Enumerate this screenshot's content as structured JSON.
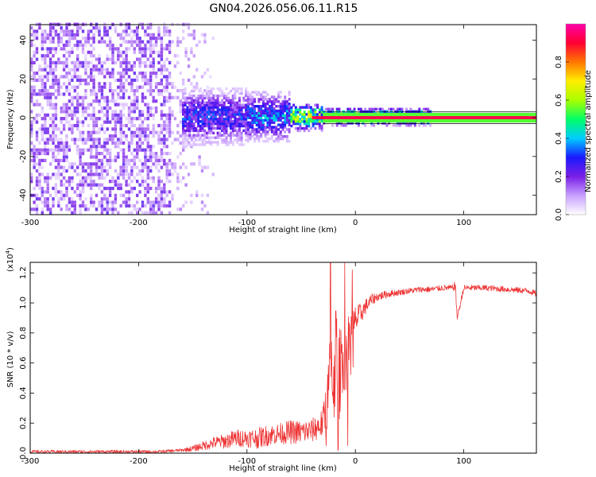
{
  "title": "GN04.2026.056.06.11.R15",
  "chart_data": [
    {
      "type": "heatmap",
      "xlabel": "Height of straight line (km)",
      "ylabel": "Frequency (Hz)",
      "xlim": [
        -300,
        167
      ],
      "ylim": [
        -50,
        48
      ],
      "xticks": [
        -300,
        -200,
        -100,
        0,
        100
      ],
      "xtick_labels": [
        "-300",
        "-200",
        "-100",
        "0",
        "100"
      ],
      "yticks": [
        -40,
        -20,
        0,
        20,
        40
      ],
      "ytick_labels": [
        "-40",
        "-20",
        "0",
        "20",
        "40"
      ],
      "colorbar": {
        "label": "Normalized spectral amplitude",
        "range": [
          0,
          1
        ],
        "ticks": [
          0.0,
          0.2,
          0.4,
          0.6,
          0.8
        ],
        "tick_labels": [
          "0.0",
          "0.2",
          "0.4",
          "0.6",
          "0.8"
        ],
        "colormap": [
          "#ffffff",
          "#c9a0ff",
          "#7a1ee6",
          "#1a1aff",
          "#00ccff",
          "#00ff66",
          "#aaff00",
          "#ffee00",
          "#ff7700",
          "#ff0033",
          "#ff00aa"
        ]
      },
      "regions": [
        {
          "x": [
            -300,
            -170
          ],
          "freq_range": [
            -50,
            48
          ],
          "amplitude": 0.15,
          "description_tag": "broadband noise"
        },
        {
          "x": [
            -170,
            -130
          ],
          "freq_range": [
            -50,
            48
          ],
          "amplitude": 0.05
        },
        {
          "x": [
            -160,
            -60
          ],
          "freq_center": 0,
          "amplitude": 0.35
        },
        {
          "x": [
            -60,
            -30
          ],
          "freq_center": 0,
          "amplitude": 0.75
        },
        {
          "x": [
            -30,
            167
          ],
          "freq_center": 0,
          "amplitude": 0.9
        }
      ]
    },
    {
      "type": "line",
      "xlabel": "Height of straight line (km)",
      "ylabel": "SNR (10 * v/v)",
      "y_multiplier": "(x10",
      "y_multiplier_exp": "4",
      "y_multiplier_close": ")",
      "xlim": [
        -300,
        167
      ],
      "ylim": [
        0,
        1.27
      ],
      "xticks": [
        -300,
        -200,
        -100,
        0,
        100
      ],
      "xtick_labels": [
        "-300",
        "-200",
        "-100",
        "0",
        "100"
      ],
      "yticks": [
        0.0,
        0.2,
        0.4,
        0.6,
        0.8,
        1.0,
        1.2
      ],
      "ytick_labels": [
        "0.0",
        "0.2",
        "0.4",
        "0.6",
        "0.8",
        "1.0",
        "1.2"
      ],
      "color": "#ee3333",
      "series": [
        {
          "x": [
            -300,
            -260,
            -220,
            -180,
            -160,
            -150,
            -140,
            -130,
            -120,
            -110,
            -100,
            -90,
            -80,
            -70,
            -60,
            -50,
            -40,
            -30,
            -25,
            -22,
            -20,
            -18,
            -15,
            -12,
            -10,
            -8,
            -5,
            0,
            5,
            10,
            15,
            20,
            30,
            40,
            50,
            60,
            70,
            80,
            90,
            92,
            94,
            100,
            120,
            140,
            160,
            167
          ],
          "y": [
            0.01,
            0.01,
            0.01,
            0.01,
            0.02,
            0.03,
            0.05,
            0.07,
            0.08,
            0.1,
            0.1,
            0.1,
            0.12,
            0.13,
            0.14,
            0.14,
            0.15,
            0.2,
            0.4,
            0.6,
            0.5,
            0.7,
            0.5,
            0.7,
            0.6,
            0.75,
            0.8,
            0.88,
            0.93,
            0.98,
            1.02,
            1.04,
            1.06,
            1.07,
            1.08,
            1.09,
            1.09,
            1.1,
            1.1,
            1.12,
            0.9,
            1.1,
            1.1,
            1.09,
            1.08,
            1.06
          ],
          "noise": [
            0.01,
            0.01,
            0.01,
            0.01,
            0.01,
            0.02,
            0.03,
            0.04,
            0.05,
            0.06,
            0.06,
            0.07,
            0.07,
            0.07,
            0.08,
            0.08,
            0.08,
            0.1,
            0.25,
            0.3,
            0.35,
            0.35,
            0.3,
            0.3,
            0.25,
            0.2,
            0.15,
            0.1,
            0.07,
            0.05,
            0.04,
            0.03,
            0.025,
            0.02,
            0.02,
            0.02,
            0.02,
            0.02,
            0.02,
            0.04,
            0.02,
            0.02,
            0.02,
            0.02,
            0.02,
            0.02
          ],
          "spikes": [
            [
              -23,
              1.27
            ],
            [
              -10,
              1.27
            ],
            [
              -3,
              1.22
            ],
            [
              -16,
              0.02
            ],
            [
              -7,
              0.05
            ]
          ]
        }
      ]
    }
  ]
}
